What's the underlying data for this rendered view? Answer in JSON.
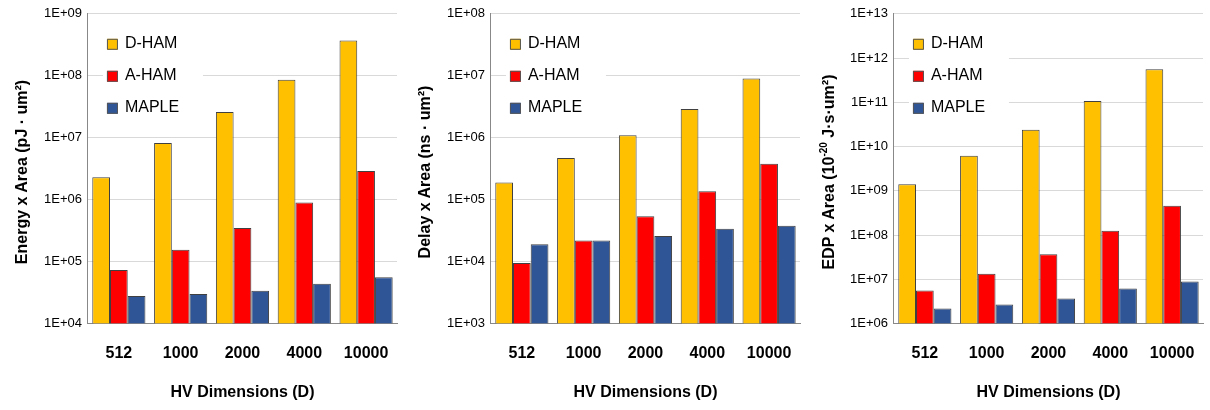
{
  "chart_data": [
    {
      "type": "bar",
      "xlabel": "HV Dimensions (D)",
      "ylabel": "Energy x Area (pJ · um²)",
      "categories": [
        "512",
        "1000",
        "2000",
        "4000",
        "10000"
      ],
      "series": [
        {
          "name": "D-HAM",
          "color": "#ffc000",
          "values": [
            2300000,
            8200000,
            26000000,
            86000000,
            370000000
          ]
        },
        {
          "name": "A-HAM",
          "color": "#ff0000",
          "values": [
            73000,
            155000,
            350000,
            900000,
            2900000
          ]
        },
        {
          "name": "MAPLE",
          "color": "#2f5597",
          "values": [
            28000,
            30000,
            34000,
            44000,
            56000
          ]
        }
      ],
      "log": "y",
      "ylim": [
        10000,
        1000000000
      ],
      "yticks": [
        {
          "value": 10000,
          "label": "1E+04"
        },
        {
          "value": 100000,
          "label": "1E+05"
        },
        {
          "value": 1000000,
          "label": "1E+06"
        },
        {
          "value": 10000000,
          "label": "1E+07"
        },
        {
          "value": 100000000,
          "label": "1E+08"
        },
        {
          "value": 1000000000,
          "label": "1E+09"
        }
      ],
      "grid": "y",
      "legend": "top left"
    },
    {
      "type": "bar",
      "xlabel": "HV Dimensions (D)",
      "ylabel": "Delay x Area (ns · um²)",
      "categories": [
        "512",
        "1000",
        "2000",
        "4000",
        "10000"
      ],
      "series": [
        {
          "name": "D-HAM",
          "color": "#ffc000",
          "values": [
            190000,
            470000,
            1100000,
            2900000,
            9000000
          ]
        },
        {
          "name": "A-HAM",
          "color": "#ff0000",
          "values": [
            9500,
            22000,
            54000,
            137000,
            380000
          ]
        },
        {
          "name": "MAPLE",
          "color": "#2f5597",
          "values": [
            19000,
            22000,
            26000,
            34000,
            38000
          ]
        }
      ],
      "log": "y",
      "ylim": [
        1000,
        100000000
      ],
      "yticks": [
        {
          "value": 1000,
          "label": "1E+03"
        },
        {
          "value": 10000,
          "label": "1E+04"
        },
        {
          "value": 100000,
          "label": "1E+05"
        },
        {
          "value": 1000000,
          "label": "1E+06"
        },
        {
          "value": 10000000,
          "label": "1E+07"
        },
        {
          "value": 100000000,
          "label": "1E+08"
        }
      ],
      "grid": "y",
      "legend": "top left"
    },
    {
      "type": "bar",
      "xlabel": "HV Dimensions (D)",
      "ylabel": "EDP x Area (10$^{-20}$ J·s·um²)",
      "categories": [
        "512",
        "1000",
        "2000",
        "4000",
        "10000"
      ],
      "series": [
        {
          "name": "D-HAM",
          "color": "#ffc000",
          "values": [
            1400000000,
            6200000000,
            24000000000,
            107000000000,
            560000000000
          ]
        },
        {
          "name": "A-HAM",
          "color": "#ff0000",
          "values": [
            5600000,
            13400000,
            37000000,
            125000000,
            460000000
          ]
        },
        {
          "name": "MAPLE",
          "color": "#2f5597",
          "values": [
            2200000,
            2700000,
            3700000,
            6200000,
            8900000
          ]
        }
      ],
      "log": "y",
      "ylim": [
        1000000,
        10000000000000
      ],
      "yticks": [
        {
          "value": 1000000,
          "label": "1E+06"
        },
        {
          "value": 10000000,
          "label": "1E+07"
        },
        {
          "value": 100000000,
          "label": "1E+08"
        },
        {
          "value": 1000000000,
          "label": "1E+09"
        },
        {
          "value": 10000000000,
          "label": "1E+10"
        },
        {
          "value": 100000000000,
          "label": "1E+11"
        },
        {
          "value": 1000000000000,
          "label": "1E+12"
        },
        {
          "value": 10000000000000,
          "label": "1E+13"
        }
      ],
      "grid": "y",
      "legend": "top left"
    }
  ]
}
